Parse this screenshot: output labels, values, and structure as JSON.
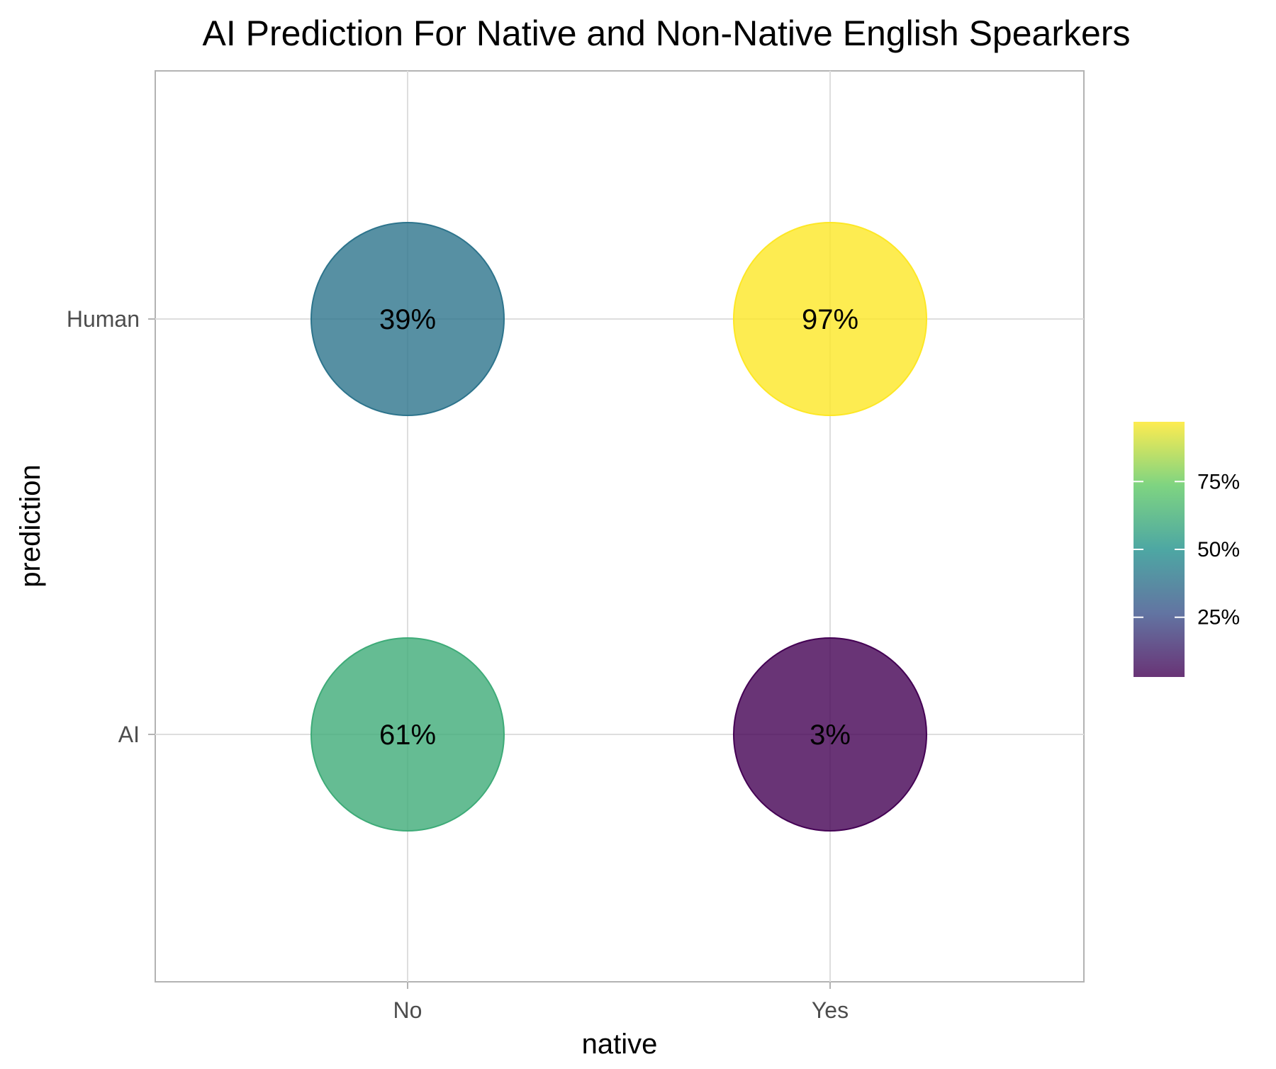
{
  "chart_data": {
    "type": "scatter",
    "title": "AI Prediction For Native and Non-Native English Spearkers",
    "xlabel": "native",
    "ylabel": "prediction",
    "x_categories": [
      "No",
      "Yes"
    ],
    "y_categories": [
      "AI",
      "Human"
    ],
    "points": [
      {
        "x": "No",
        "y": "Human",
        "value": 39,
        "label": "39%"
      },
      {
        "x": "Yes",
        "y": "Human",
        "value": 97,
        "label": "97%"
      },
      {
        "x": "No",
        "y": "AI",
        "value": 61,
        "label": "61%"
      },
      {
        "x": "Yes",
        "y": "AI",
        "value": 3,
        "label": "3%"
      }
    ],
    "colorbar": {
      "range": [
        3,
        97
      ],
      "ticks": [
        25,
        50,
        75
      ],
      "tick_labels": [
        "25%",
        "50%",
        "75%"
      ],
      "palette": [
        "#440154",
        "#3b528b",
        "#21918c",
        "#5ec962",
        "#fde725"
      ],
      "placement": "right"
    },
    "grid": true,
    "point_alpha": 0.8
  }
}
